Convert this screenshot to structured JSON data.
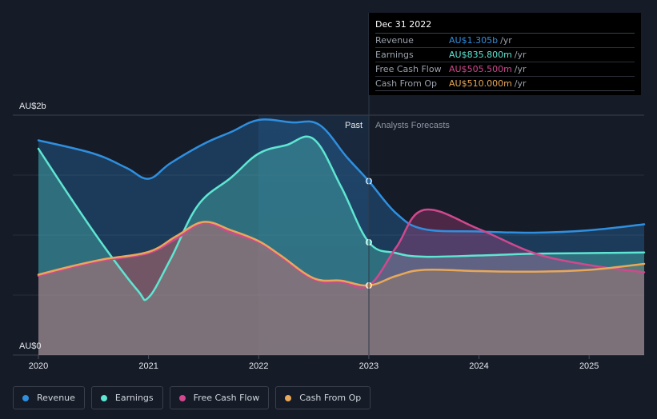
{
  "chart_data": {
    "type": "line",
    "title": "",
    "y_top_label": "AU$2b",
    "y_bottom_label": "AU$0",
    "ylim": [
      0,
      2000
    ],
    "xlim": [
      2020,
      2025.5
    ],
    "x_ticks": [
      "2020",
      "2021",
      "2022",
      "2023",
      "2024",
      "2025"
    ],
    "past_label": "Past",
    "forecast_label": "Analysts Forecasts",
    "divider_x": 2023,
    "series": [
      {
        "name": "Revenue",
        "color": "#2f8fdf",
        "points": [
          [
            2020,
            1790
          ],
          [
            2020.5,
            1680
          ],
          [
            2020.8,
            1560
          ],
          [
            2021,
            1470
          ],
          [
            2021.2,
            1600
          ],
          [
            2021.5,
            1760
          ],
          [
            2021.75,
            1860
          ],
          [
            2022,
            1960
          ],
          [
            2022.3,
            1940
          ],
          [
            2022.55,
            1920
          ],
          [
            2022.8,
            1650
          ],
          [
            2023,
            1450
          ],
          [
            2023.25,
            1180
          ],
          [
            2023.5,
            1050
          ],
          [
            2024,
            1030
          ],
          [
            2024.5,
            1020
          ],
          [
            2025,
            1040
          ],
          [
            2025.5,
            1090
          ]
        ]
      },
      {
        "name": "Earnings",
        "color": "#5ee6d2",
        "points": [
          [
            2020,
            1720
          ],
          [
            2020.3,
            1300
          ],
          [
            2020.6,
            900
          ],
          [
            2020.9,
            540
          ],
          [
            2021,
            480
          ],
          [
            2021.2,
            800
          ],
          [
            2021.45,
            1250
          ],
          [
            2021.75,
            1480
          ],
          [
            2022,
            1680
          ],
          [
            2022.25,
            1750
          ],
          [
            2022.5,
            1800
          ],
          [
            2022.75,
            1400
          ],
          [
            2023,
            940
          ],
          [
            2023.25,
            850
          ],
          [
            2023.5,
            820
          ],
          [
            2024,
            830
          ],
          [
            2024.5,
            845
          ],
          [
            2025,
            850
          ],
          [
            2025.5,
            855
          ]
        ]
      },
      {
        "name": "Free Cash Flow",
        "color": "#d0488e",
        "points": [
          [
            2020,
            660
          ],
          [
            2020.3,
            730
          ],
          [
            2020.6,
            790
          ],
          [
            2021,
            850
          ],
          [
            2021.25,
            970
          ],
          [
            2021.5,
            1100
          ],
          [
            2021.75,
            1020
          ],
          [
            2022,
            940
          ],
          [
            2022.2,
            820
          ],
          [
            2022.5,
            630
          ],
          [
            2022.75,
            610
          ],
          [
            2023,
            580
          ],
          [
            2023.25,
            900
          ],
          [
            2023.5,
            1210
          ],
          [
            2024,
            1050
          ],
          [
            2024.5,
            850
          ],
          [
            2025,
            750
          ],
          [
            2025.5,
            690
          ]
        ]
      },
      {
        "name": "Cash From Op",
        "color": "#e8a85a",
        "points": [
          [
            2020,
            670
          ],
          [
            2020.3,
            740
          ],
          [
            2020.6,
            800
          ],
          [
            2021,
            860
          ],
          [
            2021.25,
            990
          ],
          [
            2021.5,
            1110
          ],
          [
            2021.75,
            1040
          ],
          [
            2022,
            950
          ],
          [
            2022.2,
            830
          ],
          [
            2022.5,
            640
          ],
          [
            2022.75,
            620
          ],
          [
            2023,
            580
          ],
          [
            2023.25,
            660
          ],
          [
            2023.5,
            710
          ],
          [
            2024,
            700
          ],
          [
            2024.5,
            695
          ],
          [
            2025,
            710
          ],
          [
            2025.5,
            760
          ]
        ]
      }
    ]
  },
  "tooltip": {
    "title": "Dec 31 2022",
    "rows": [
      {
        "label": "Revenue",
        "value": "AU$1.305b",
        "unit": "/yr",
        "color": "#2f8fdf"
      },
      {
        "label": "Earnings",
        "value": "AU$835.800m",
        "unit": "/yr",
        "color": "#5ee6d2"
      },
      {
        "label": "Free Cash Flow",
        "value": "AU$505.500m",
        "unit": "/yr",
        "color": "#d0488e"
      },
      {
        "label": "Cash From Op",
        "value": "AU$510.000m",
        "unit": "/yr",
        "color": "#e8a85a"
      }
    ]
  },
  "legend": [
    {
      "label": "Revenue",
      "color": "#2f8fdf"
    },
    {
      "label": "Earnings",
      "color": "#5ee6d2"
    },
    {
      "label": "Free Cash Flow",
      "color": "#d0488e"
    },
    {
      "label": "Cash From Op",
      "color": "#e8a85a"
    }
  ]
}
